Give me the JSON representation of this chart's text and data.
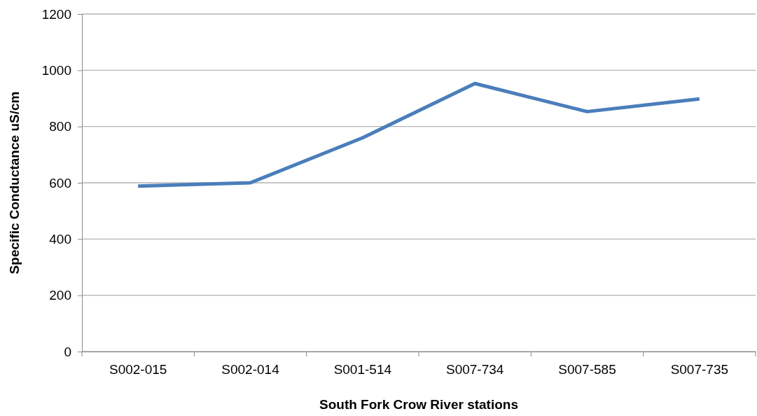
{
  "chart_data": {
    "type": "line",
    "xlabel": "South Fork Crow River stations",
    "ylabel": "Specific Conductance uS/cm",
    "categories": [
      "S002-015",
      "S002-014",
      "S001-514",
      "S007-734",
      "S007-585",
      "S007-735"
    ],
    "series": [
      {
        "color": "#4a7ebb",
        "values": [
          588,
          600,
          760,
          953,
          853,
          898
        ]
      }
    ],
    "ylim": [
      0,
      1200
    ],
    "yticks": [
      0,
      200,
      400,
      600,
      800,
      1000,
      1200
    ],
    "grid": "y",
    "marker": "none",
    "line_style": "solid"
  }
}
